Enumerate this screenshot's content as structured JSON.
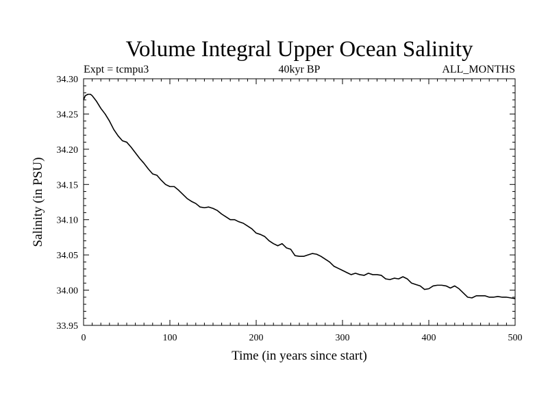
{
  "chart_data": {
    "type": "line",
    "title": "Volume Integral Upper Ocean Salinity",
    "subtitle_left": "Expt = tcmpu3",
    "subtitle_center": "40kyr BP",
    "subtitle_right": "ALL_MONTHS",
    "xlabel": "Time (in years since start)",
    "ylabel": "Salinity (in PSU)",
    "xlim": [
      0,
      500
    ],
    "ylim": [
      33.95,
      34.3
    ],
    "x_ticks": [
      "0",
      "100",
      "200",
      "300",
      "400",
      "500"
    ],
    "y_ticks": [
      "33.95",
      "34.00",
      "34.05",
      "34.10",
      "34.15",
      "34.20",
      "34.25",
      "34.30"
    ],
    "grid": false,
    "series": [
      {
        "x": [
          0,
          2,
          5,
          8,
          10,
          15,
          20,
          25,
          30,
          35,
          40,
          45,
          50,
          55,
          60,
          65,
          70,
          75,
          80,
          85,
          90,
          95,
          100,
          105,
          110,
          115,
          120,
          125,
          130,
          135,
          140,
          145,
          150,
          155,
          160,
          165,
          170,
          175,
          180,
          185,
          190,
          195,
          200,
          205,
          210,
          215,
          220,
          225,
          230,
          235,
          240,
          245,
          250,
          255,
          260,
          265,
          270,
          275,
          280,
          285,
          290,
          295,
          300,
          305,
          310,
          315,
          320,
          325,
          330,
          335,
          340,
          345,
          350,
          355,
          360,
          365,
          370,
          375,
          380,
          385,
          390,
          395,
          400,
          405,
          410,
          415,
          420,
          425,
          430,
          435,
          440,
          445,
          450,
          455,
          460,
          465,
          470,
          475,
          480,
          485,
          490,
          495,
          500
        ],
        "y": [
          34.27,
          34.276,
          34.278,
          34.278,
          34.276,
          34.268,
          34.258,
          34.25,
          34.24,
          34.228,
          34.219,
          34.212,
          34.21,
          34.203,
          34.195,
          34.187,
          34.18,
          34.172,
          34.165,
          34.163,
          34.156,
          34.15,
          34.147,
          34.147,
          34.142,
          34.136,
          34.13,
          34.126,
          34.123,
          34.118,
          34.117,
          34.118,
          34.116,
          34.113,
          34.108,
          34.104,
          34.1,
          34.1,
          34.097,
          34.095,
          34.091,
          34.087,
          34.081,
          34.079,
          34.076,
          34.07,
          34.066,
          34.063,
          34.066,
          34.06,
          34.058,
          34.049,
          34.048,
          34.048,
          34.05,
          34.052,
          34.051,
          34.048,
          34.044,
          34.04,
          34.034,
          34.031,
          34.028,
          34.025,
          34.022,
          34.024,
          34.022,
          34.021,
          34.024,
          34.022,
          34.022,
          34.021,
          34.016,
          34.015,
          34.017,
          34.016,
          34.019,
          34.016,
          34.01,
          34.008,
          34.006,
          34.001,
          34.002,
          34.006,
          34.007,
          34.007,
          34.006,
          34.003,
          34.006,
          34.002,
          33.996,
          33.99,
          33.989,
          33.992,
          33.992,
          33.992,
          33.99,
          33.99,
          33.991,
          33.99,
          33.99,
          33.989,
          33.988
        ]
      }
    ]
  }
}
